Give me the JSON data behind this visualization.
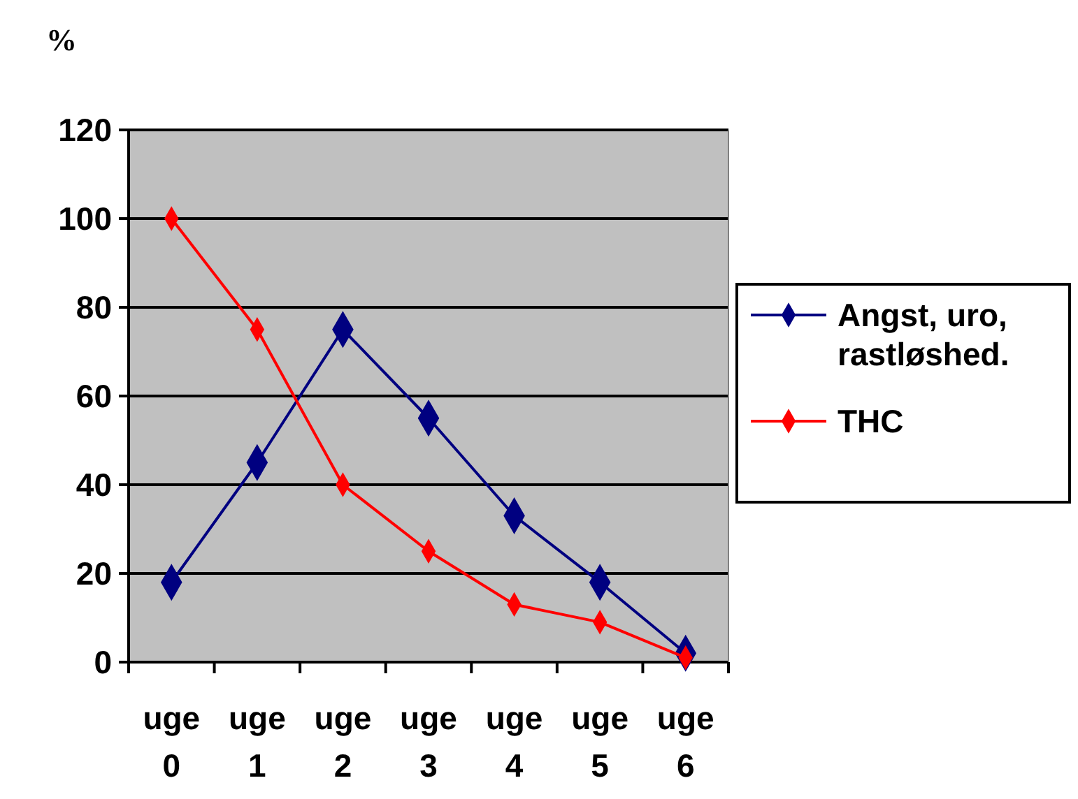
{
  "chart_data": {
    "type": "line",
    "ylabel": "%",
    "categories": [
      "uge 0",
      "uge 1",
      "uge 2",
      "uge 3",
      "uge 4",
      "uge 5",
      "uge 6"
    ],
    "series": [
      {
        "name": "Angst, uro, rastløshed.",
        "color": "#000080",
        "values": [
          18,
          45,
          75,
          55,
          33,
          18,
          2
        ]
      },
      {
        "name": "THC",
        "color": "#ff0000",
        "values": [
          100,
          75,
          40,
          25,
          13,
          9,
          1
        ]
      }
    ],
    "ylim": [
      0,
      120
    ],
    "yticks": [
      0,
      20,
      40,
      60,
      80,
      100,
      120
    ],
    "grid": "y",
    "legend": "right",
    "marker": "diamond",
    "line_style": "solid"
  }
}
